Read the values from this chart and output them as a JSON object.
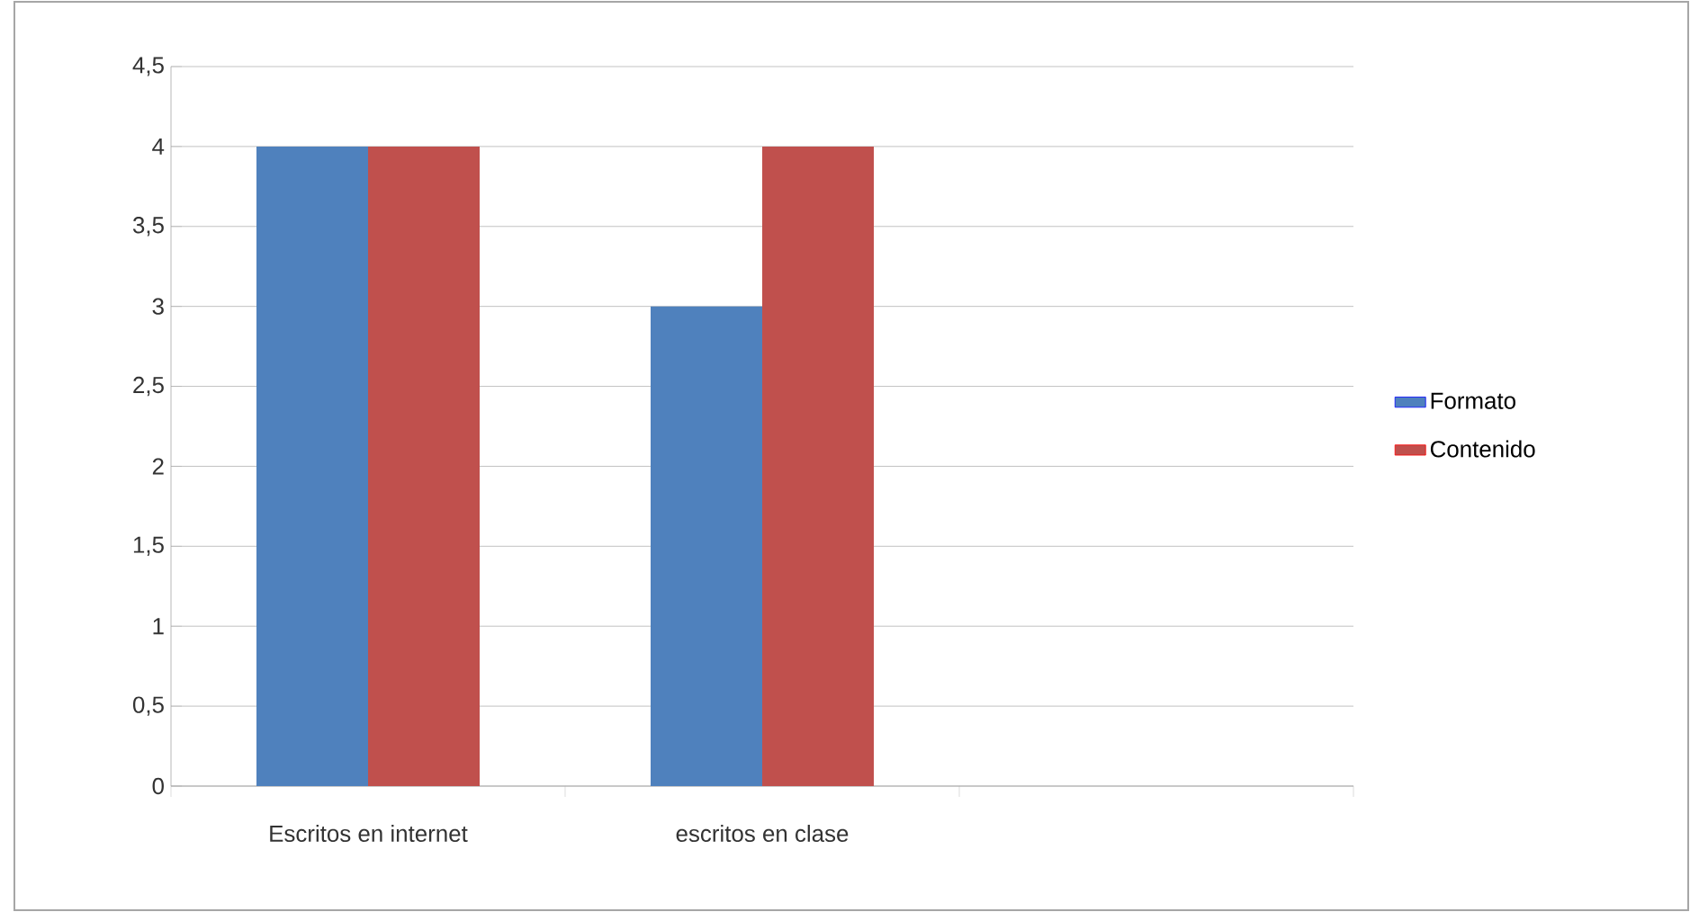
{
  "chart_data": {
    "type": "bar",
    "categories": [
      "Escritos en internet",
      "escritos en clase",
      null
    ],
    "series": [
      {
        "name": "Formato",
        "color": "#4f81bd",
        "values": [
          4,
          3,
          null
        ]
      },
      {
        "name": "Contenido",
        "color": "#c0504d",
        "values": [
          4,
          4,
          null
        ]
      }
    ],
    "ylim": [
      0,
      4.5
    ],
    "yticks": [
      0,
      {
        "value": 0.5,
        "label": "0,5"
      },
      1,
      {
        "value": 1.5,
        "label": "1,5"
      },
      2,
      {
        "value": 2.5,
        "label": "2,5"
      },
      3,
      {
        "value": 3.5,
        "label": "3,5"
      },
      4,
      {
        "value": 4.5,
        "label": "4,5"
      }
    ],
    "grid": "y",
    "legend": "right"
  }
}
